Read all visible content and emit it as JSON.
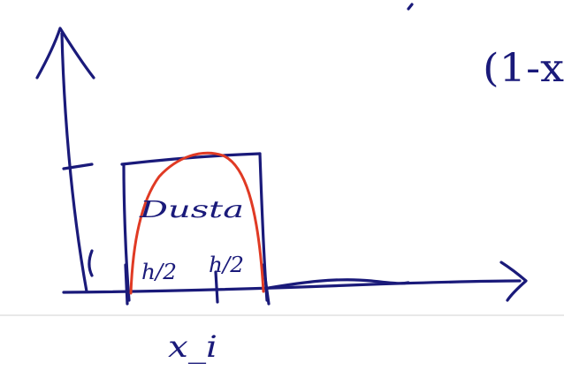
{
  "colors": {
    "ink": "#1a1a7a",
    "curve": "#e03a24",
    "rule": "#e8e8e8",
    "background": "#ffffff"
  },
  "labels": {
    "box_text": "Dusta",
    "left_half": "h/2",
    "right_half": "h/2",
    "point": "x_i",
    "top_right": "(1-x"
  }
}
